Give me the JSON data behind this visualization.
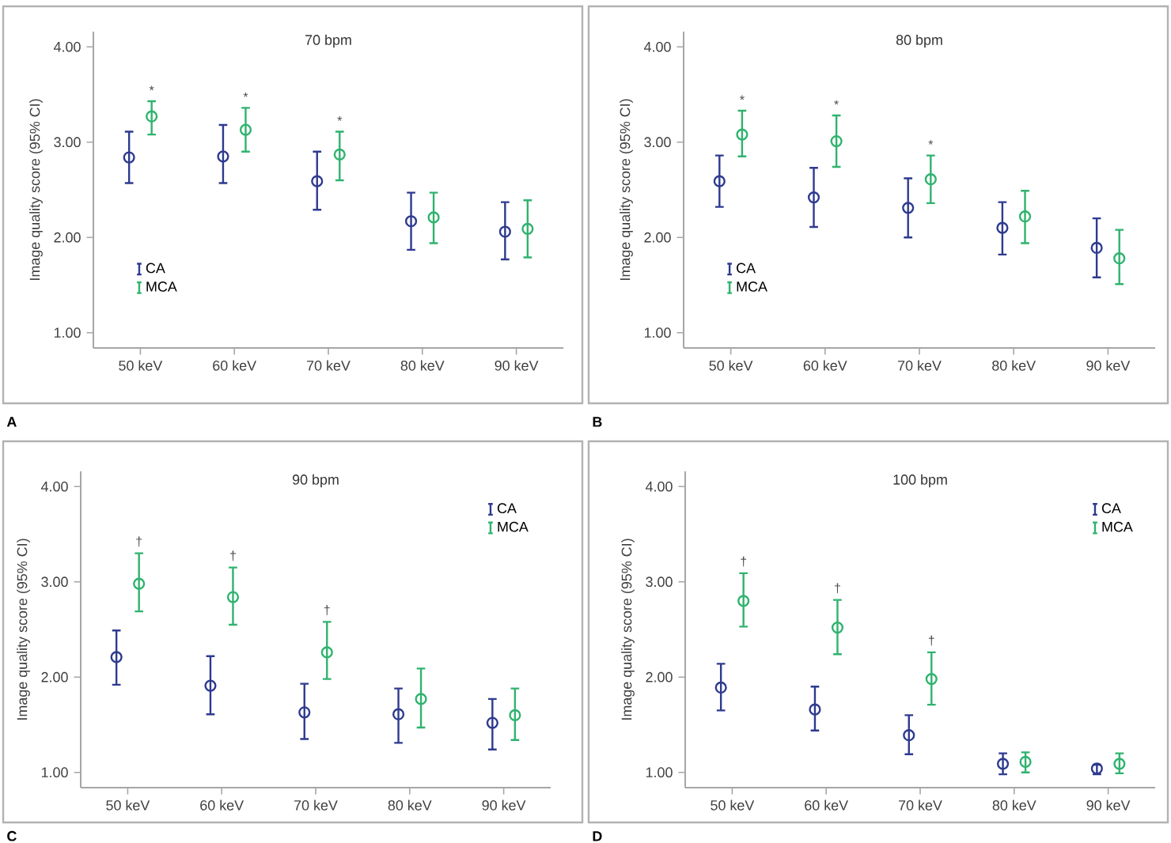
{
  "chart_data": [
    {
      "type": "scatter",
      "title": "70 bpm",
      "ylabel": "Image quality score (95% CI)",
      "categories": [
        "50 keV",
        "60 keV",
        "70 keV",
        "80 keV",
        "90 keV"
      ],
      "ylim": [
        0.84,
        4.16
      ],
      "yticks": [
        {
          "value": 1,
          "label": "1.00"
        },
        {
          "value": 2,
          "label": "2.00"
        },
        {
          "value": 3,
          "label": "3.00"
        },
        {
          "value": 4,
          "label": "4.00"
        }
      ],
      "marker": "circle",
      "legend": "left",
      "grid": false,
      "series": [
        {
          "name": "CA",
          "color": "#2e3a8f",
          "values": [
            2.84,
            2.85,
            2.59,
            2.17,
            2.06
          ],
          "errors": [
            [
              2.57,
              3.11
            ],
            [
              2.57,
              3.18
            ],
            [
              2.29,
              2.9
            ],
            [
              1.87,
              2.47
            ],
            [
              1.77,
              2.37
            ]
          ]
        },
        {
          "name": "MCA",
          "color": "#2fb36e",
          "values": [
            3.27,
            3.13,
            2.87,
            2.21,
            2.09
          ],
          "errors": [
            [
              3.08,
              3.43
            ],
            [
              2.9,
              3.36
            ],
            [
              2.6,
              3.11
            ],
            [
              1.94,
              2.47
            ],
            [
              1.79,
              2.39
            ]
          ]
        }
      ],
      "annotations": [
        "A",
        "*",
        "*",
        "*"
      ]
    },
    {
      "type": "scatter",
      "title": "80 bpm",
      "ylabel": "Image quality score (95% CI)",
      "categories": [
        "50 keV",
        "60 keV",
        "70 keV",
        "80 keV",
        "90 keV"
      ],
      "ylim": [
        0.84,
        4.16
      ],
      "yticks": [
        {
          "value": 1,
          "label": "1.00"
        },
        {
          "value": 2,
          "label": "2.00"
        },
        {
          "value": 3,
          "label": "3.00"
        },
        {
          "value": 4,
          "label": "4.00"
        }
      ],
      "marker": "circle",
      "legend": "left",
      "grid": false,
      "series": [
        {
          "name": "CA",
          "color": "#2e3a8f",
          "values": [
            2.59,
            2.42,
            2.31,
            2.1,
            1.89
          ],
          "errors": [
            [
              2.32,
              2.86
            ],
            [
              2.11,
              2.73
            ],
            [
              2.0,
              2.62
            ],
            [
              1.82,
              2.37
            ],
            [
              1.58,
              2.2
            ]
          ]
        },
        {
          "name": "MCA",
          "color": "#2fb36e",
          "values": [
            3.08,
            3.01,
            2.61,
            2.22,
            1.78
          ],
          "errors": [
            [
              2.85,
              3.33
            ],
            [
              2.74,
              3.28
            ],
            [
              2.36,
              2.86
            ],
            [
              1.94,
              2.49
            ],
            [
              1.51,
              2.08
            ]
          ]
        }
      ],
      "annotations": [
        "B",
        "*",
        "*",
        "*"
      ]
    },
    {
      "type": "scatter",
      "title": "90 bpm",
      "ylabel": "Image quality score (95% CI)",
      "categories": [
        "50 keV",
        "60 keV",
        "70 keV",
        "80 keV",
        "90 keV"
      ],
      "ylim": [
        0.84,
        4.16
      ],
      "yticks": [
        {
          "value": 1,
          "label": "1.00"
        },
        {
          "value": 2,
          "label": "2.00"
        },
        {
          "value": 3,
          "label": "3.00"
        },
        {
          "value": 4,
          "label": "4.00"
        }
      ],
      "marker": "circle",
      "legend": "top right",
      "grid": false,
      "series": [
        {
          "name": "CA",
          "color": "#2e3a8f",
          "values": [
            2.21,
            1.91,
            1.63,
            1.61,
            1.52
          ],
          "errors": [
            [
              1.92,
              2.49
            ],
            [
              1.61,
              2.22
            ],
            [
              1.35,
              1.93
            ],
            [
              1.31,
              1.88
            ],
            [
              1.24,
              1.77
            ]
          ]
        },
        {
          "name": "MCA",
          "color": "#2fb36e",
          "values": [
            2.98,
            2.84,
            2.26,
            1.77,
            1.6
          ],
          "errors": [
            [
              2.69,
              3.3
            ],
            [
              2.55,
              3.15
            ],
            [
              1.98,
              2.58
            ],
            [
              1.47,
              2.09
            ],
            [
              1.34,
              1.88
            ]
          ]
        }
      ],
      "annotations": [
        "C",
        "†",
        "†",
        "†"
      ]
    },
    {
      "type": "scatter",
      "title": "100 bpm",
      "ylabel": "Image quality score (95% CI)",
      "categories": [
        "50 keV",
        "60 keV",
        "70 keV",
        "80 keV",
        "90 keV"
      ],
      "ylim": [
        0.84,
        4.16
      ],
      "yticks": [
        {
          "value": 1,
          "label": "1.00"
        },
        {
          "value": 2,
          "label": "2.00"
        },
        {
          "value": 3,
          "label": "3.00"
        },
        {
          "value": 4,
          "label": "4.00"
        }
      ],
      "marker": "circle",
      "legend": "top right",
      "grid": false,
      "series": [
        {
          "name": "CA",
          "color": "#2e3a8f",
          "values": [
            1.89,
            1.66,
            1.39,
            1.09,
            1.04
          ],
          "errors": [
            [
              1.65,
              2.14
            ],
            [
              1.44,
              1.9
            ],
            [
              1.19,
              1.6
            ],
            [
              0.98,
              1.2
            ],
            [
              0.98,
              1.08
            ]
          ]
        },
        {
          "name": "MCA",
          "color": "#2fb36e",
          "values": [
            2.8,
            2.52,
            1.98,
            1.11,
            1.09
          ],
          "errors": [
            [
              2.53,
              3.09
            ],
            [
              2.24,
              2.81
            ],
            [
              1.71,
              2.26
            ],
            [
              1.0,
              1.21
            ],
            [
              0.99,
              1.2
            ]
          ]
        }
      ],
      "annotations": [
        "D",
        "†",
        "†",
        "†"
      ]
    }
  ]
}
